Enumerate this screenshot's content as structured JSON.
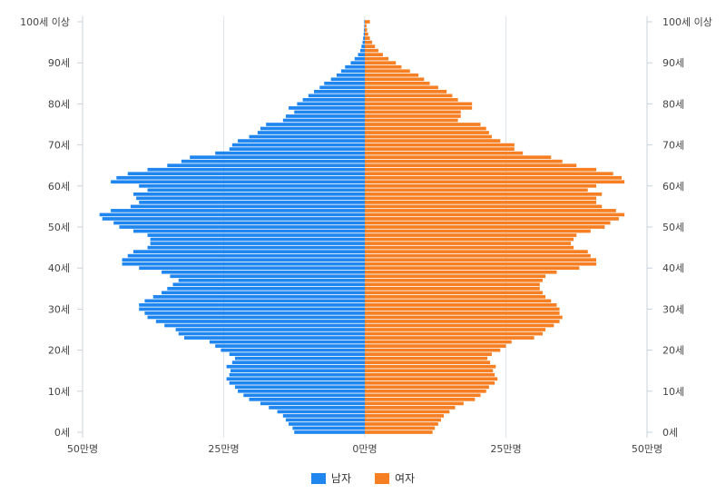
{
  "chart_data": {
    "type": "bar",
    "orientation": "horizontal",
    "title": "",
    "xlabel": "",
    "ylabel": "",
    "unit": "명",
    "x_ticks": [
      "50만명",
      "25만명",
      "0만명",
      "25만명",
      "50만명"
    ],
    "y_ticks": [
      "0세",
      "10세",
      "20세",
      "30세",
      "40세",
      "50세",
      "60세",
      "70세",
      "80세",
      "90세",
      "100세 이상"
    ],
    "xlim": [
      -500000,
      500000
    ],
    "grid": true,
    "legend": "bottom-center",
    "categories": [
      "0세",
      "1세",
      "2세",
      "3세",
      "4세",
      "5세",
      "6세",
      "7세",
      "8세",
      "9세",
      "10세",
      "11세",
      "12세",
      "13세",
      "14세",
      "15세",
      "16세",
      "17세",
      "18세",
      "19세",
      "20세",
      "21세",
      "22세",
      "23세",
      "24세",
      "25세",
      "26세",
      "27세",
      "28세",
      "29세",
      "30세",
      "31세",
      "32세",
      "33세",
      "34세",
      "35세",
      "36세",
      "37세",
      "38세",
      "39세",
      "40세",
      "41세",
      "42세",
      "43세",
      "44세",
      "45세",
      "46세",
      "47세",
      "48세",
      "49세",
      "50세",
      "51세",
      "52세",
      "53세",
      "54세",
      "55세",
      "56세",
      "57세",
      "58세",
      "59세",
      "60세",
      "61세",
      "62세",
      "63세",
      "64세",
      "65세",
      "66세",
      "67세",
      "68세",
      "69세",
      "70세",
      "71세",
      "72세",
      "73세",
      "74세",
      "75세",
      "76세",
      "77세",
      "78세",
      "79세",
      "80세",
      "81세",
      "82세",
      "83세",
      "84세",
      "85세",
      "86세",
      "87세",
      "88세",
      "89세",
      "90세",
      "91세",
      "92세",
      "93세",
      "94세",
      "95세",
      "96세",
      "97세",
      "98세",
      "99세",
      "100세 이상"
    ],
    "series": [
      {
        "name": "남자",
        "color": "#1f86f0",
        "values": [
          125000,
          128000,
          135000,
          140000,
          145000,
          155000,
          170000,
          185000,
          205000,
          215000,
          225000,
          230000,
          240000,
          245000,
          240000,
          238000,
          245000,
          235000,
          230000,
          240000,
          255000,
          265000,
          275000,
          320000,
          330000,
          335000,
          355000,
          370000,
          385000,
          390000,
          400000,
          400000,
          390000,
          375000,
          360000,
          350000,
          340000,
          330000,
          345000,
          360000,
          400000,
          430000,
          430000,
          420000,
          410000,
          385000,
          380000,
          380000,
          385000,
          410000,
          435000,
          445000,
          465000,
          470000,
          450000,
          415000,
          400000,
          405000,
          410000,
          385000,
          400000,
          450000,
          440000,
          420000,
          385000,
          350000,
          325000,
          310000,
          265000,
          240000,
          235000,
          225000,
          205000,
          190000,
          185000,
          175000,
          145000,
          140000,
          125000,
          135000,
          120000,
          110000,
          100000,
          90000,
          80000,
          72000,
          60000,
          50000,
          42000,
          35000,
          25000,
          18000,
          12000,
          8000,
          6000,
          4000,
          3000,
          2000,
          1500,
          1000,
          1000
        ]
      },
      {
        "name": "여자",
        "color": "#f57f22",
        "values": [
          120000,
          124000,
          130000,
          135000,
          140000,
          150000,
          160000,
          175000,
          195000,
          205000,
          215000,
          220000,
          230000,
          235000,
          230000,
          227000,
          232000,
          222000,
          217000,
          225000,
          240000,
          250000,
          260000,
          300000,
          315000,
          320000,
          335000,
          345000,
          350000,
          345000,
          345000,
          340000,
          330000,
          320000,
          315000,
          310000,
          310000,
          315000,
          320000,
          340000,
          380000,
          410000,
          410000,
          400000,
          395000,
          370000,
          365000,
          370000,
          375000,
          400000,
          425000,
          435000,
          450000,
          460000,
          445000,
          420000,
          410000,
          410000,
          420000,
          395000,
          410000,
          460000,
          455000,
          440000,
          410000,
          375000,
          350000,
          330000,
          280000,
          265000,
          265000,
          240000,
          225000,
          220000,
          215000,
          205000,
          165000,
          170000,
          170000,
          190000,
          190000,
          165000,
          155000,
          145000,
          130000,
          115000,
          105000,
          95000,
          80000,
          65000,
          55000,
          42000,
          32000,
          24000,
          18000,
          13000,
          9000,
          6000,
          4000,
          3000,
          9000
        ]
      }
    ]
  }
}
